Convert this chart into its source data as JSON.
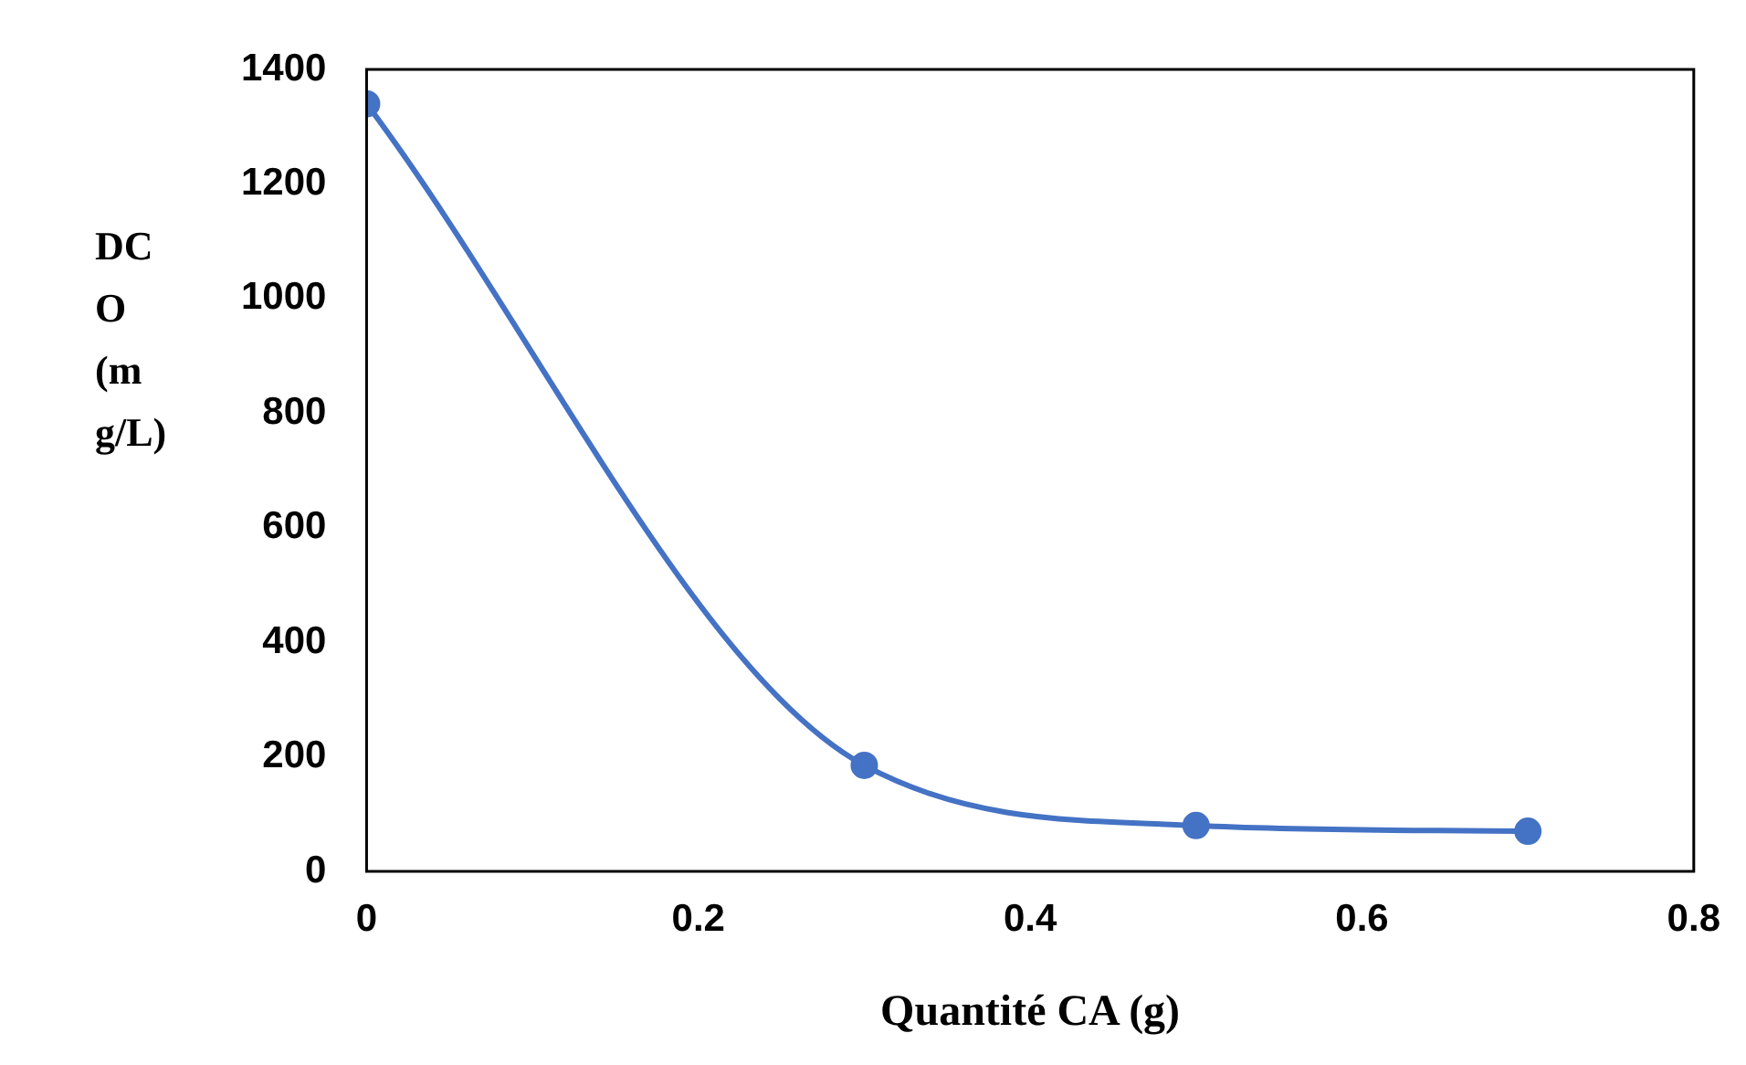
{
  "chart_data": {
    "type": "line",
    "xlabel": "Quantité CA (g)",
    "ylabel": "DCO (mg/L)",
    "x": [
      0,
      0.3,
      0.5,
      0.7
    ],
    "series": [
      {
        "color": "#4472c4",
        "values": [
          1340,
          185,
          80,
          70
        ]
      }
    ],
    "xlim": [
      0,
      0.8
    ],
    "xticks": [
      0,
      0.2,
      0.4,
      0.6,
      0.8
    ],
    "ylim": [
      0,
      1400
    ],
    "yticks": [
      0,
      200,
      400,
      600,
      800,
      1000,
      1200,
      1400
    ],
    "grid": false,
    "legend": false,
    "marker": "circle",
    "line_style": "solid"
  }
}
